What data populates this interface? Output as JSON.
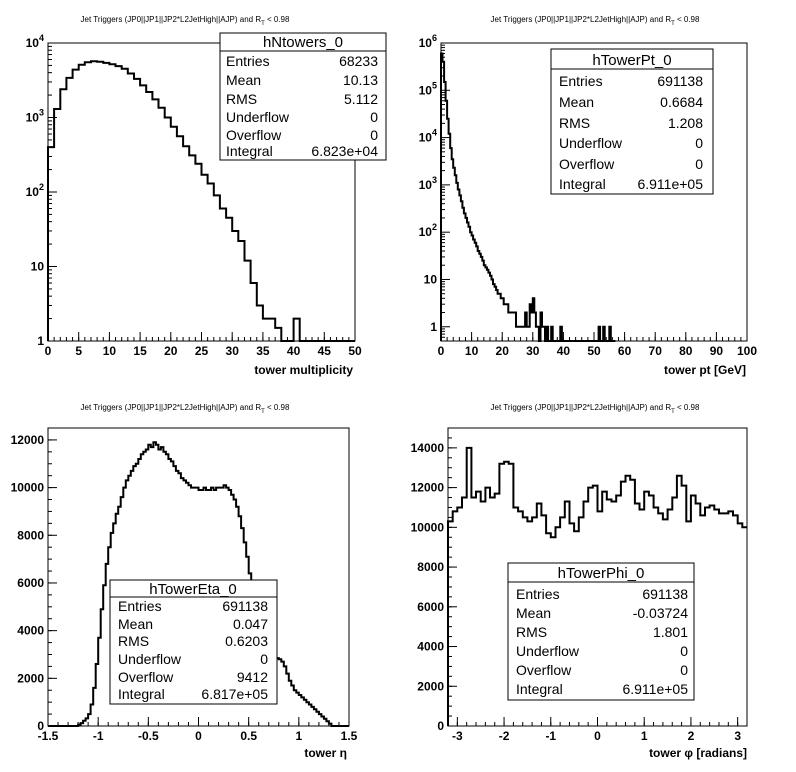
{
  "panels": [
    {
      "id": "ntowers",
      "title": "Jet Triggers (JP0||JP1||JP2*L2JetHigh||AJP) and R_T < 0.98",
      "stats": {
        "name": "hNtowers_0",
        "rows": [
          {
            "label": "Entries",
            "value": "68233"
          },
          {
            "label": "Mean",
            "value": "10.13"
          },
          {
            "label": "RMS",
            "value": "5.112"
          },
          {
            "label": "Underflow",
            "value": "0"
          },
          {
            "label": "Overflow",
            "value": "0"
          },
          {
            "label": "Integral",
            "value": "6.823e+04"
          }
        ]
      }
    },
    {
      "id": "towerpt",
      "title": "Jet Triggers (JP0||JP1||JP2*L2JetHigh||AJP) and R_T < 0.98",
      "stats": {
        "name": "hTowerPt_0",
        "rows": [
          {
            "label": "Entries",
            "value": "691138"
          },
          {
            "label": "Mean",
            "value": "0.6684"
          },
          {
            "label": "RMS",
            "value": "1.208"
          },
          {
            "label": "Underflow",
            "value": "0"
          },
          {
            "label": "Overflow",
            "value": "0"
          },
          {
            "label": "Integral",
            "value": "6.911e+05"
          }
        ]
      }
    },
    {
      "id": "towereta",
      "title": "Jet Triggers (JP0||JP1||JP2*L2JetHigh||AJP) and R_T < 0.98",
      "stats": {
        "name": "hTowerEta_0",
        "rows": [
          {
            "label": "Entries",
            "value": "691138"
          },
          {
            "label": "Mean",
            "value": "0.047"
          },
          {
            "label": "RMS",
            "value": "0.6203"
          },
          {
            "label": "Underflow",
            "value": "0"
          },
          {
            "label": "Overflow",
            "value": "9412"
          },
          {
            "label": "Integral",
            "value": "6.817e+05"
          }
        ]
      }
    },
    {
      "id": "towerphi",
      "title": "Jet Triggers (JP0||JP1||JP2*L2JetHigh||AJP) and R_T < 0.98",
      "stats": {
        "name": "hTowerPhi_0",
        "rows": [
          {
            "label": "Entries",
            "value": "691138"
          },
          {
            "label": "Mean",
            "value": "-0.03724"
          },
          {
            "label": "RMS",
            "value": "1.801"
          },
          {
            "label": "Underflow",
            "value": "0"
          },
          {
            "label": "Overflow",
            "value": "0"
          },
          {
            "label": "Integral",
            "value": "6.911e+05"
          }
        ]
      }
    }
  ],
  "chart_data": [
    {
      "type": "histogram",
      "name": "hNtowers_0",
      "title": "Jet Triggers (JP0||JP1||JP2*L2JetHigh||AJP) and R_T < 0.98",
      "xlabel": "tower multiplicity",
      "ylabel": "",
      "xlim": [
        0,
        50
      ],
      "ylim": [
        1,
        10000
      ],
      "yscale": "log",
      "xticks": [
        0,
        5,
        10,
        15,
        20,
        25,
        30,
        35,
        40,
        45,
        50
      ],
      "yticks": [
        1,
        10,
        100,
        1000,
        10000
      ],
      "ytick_labels": [
        "1",
        "10",
        "10^2",
        "10^3",
        "10^4"
      ],
      "grid": false,
      "bin_width": 1,
      "x_start": 0,
      "values": [
        400,
        1300,
        2400,
        3400,
        4400,
        5100,
        5500,
        5700,
        5600,
        5400,
        5200,
        4900,
        4500,
        3900,
        3300,
        2700,
        2200,
        1750,
        1350,
        1000,
        750,
        560,
        410,
        310,
        240,
        170,
        130,
        90,
        60,
        45,
        30,
        22,
        12,
        6,
        3,
        2,
        2,
        1.5,
        1,
        1,
        2,
        1,
        0,
        0,
        0,
        1,
        0,
        0,
        0,
        0
      ]
    },
    {
      "type": "histogram",
      "name": "hTowerPt_0",
      "title": "Jet Triggers (JP0||JP1||JP2*L2JetHigh||AJP) and R_T < 0.98",
      "xlabel": "tower pt [GeV]",
      "ylabel": "",
      "xlim": [
        0,
        100
      ],
      "ylim": [
        0.5,
        1000000
      ],
      "yscale": "log",
      "xticks": [
        0,
        10,
        20,
        30,
        40,
        50,
        60,
        70,
        80,
        90,
        100
      ],
      "yticks": [
        1,
        10,
        100,
        1000,
        10000,
        100000,
        1000000
      ],
      "ytick_labels": [
        "1",
        "10",
        "10^2",
        "10^3",
        "10^4",
        "10^5",
        "10^6"
      ],
      "grid": false,
      "bin_width": 0.5,
      "x_start": 0,
      "values": [
        600000,
        400000,
        150000,
        60000,
        25000,
        12000,
        6000,
        3500,
        2300,
        1600,
        1100,
        800,
        600,
        450,
        330,
        250,
        200,
        160,
        130,
        100,
        85,
        70,
        60,
        50,
        40,
        35,
        30,
        25,
        20,
        18,
        16,
        14,
        12,
        10,
        8,
        7,
        6,
        5,
        5,
        4,
        4,
        3,
        3,
        3,
        2,
        2,
        2,
        2,
        2,
        1,
        1,
        1,
        1,
        1,
        1,
        2,
        1,
        1,
        3,
        2,
        4,
        2,
        1,
        1,
        0,
        2,
        1,
        1,
        0,
        1,
        0,
        0,
        1,
        0,
        0,
        0,
        0,
        0,
        1,
        0,
        0,
        0,
        0,
        0,
        0,
        0,
        0,
        0,
        0,
        0,
        0,
        0,
        0,
        0,
        0,
        0,
        0,
        0,
        0,
        0,
        0,
        0,
        0,
        1,
        0,
        0,
        1,
        0,
        0,
        0,
        1,
        0,
        0,
        0
      ]
    },
    {
      "type": "histogram",
      "name": "hTowerEta_0",
      "title": "Jet Triggers (JP0||JP1||JP2*L2JetHigh||AJP) and R_T < 0.98",
      "xlabel": "tower η",
      "ylabel": "",
      "xlim": [
        -1.5,
        1.5
      ],
      "ylim": [
        0,
        12500
      ],
      "yscale": "linear",
      "xticks": [
        -1.5,
        -1,
        -0.5,
        0,
        0.5,
        1,
        1.5
      ],
      "xtick_labels": [
        "-1.5",
        "-1",
        "-0.5",
        "0",
        "0.5",
        "1",
        "1.5"
      ],
      "yticks": [
        0,
        2000,
        4000,
        6000,
        8000,
        10000,
        12000
      ],
      "grid": false,
      "bin_width": 0.025,
      "x_start": -1.5,
      "values": [
        0,
        0,
        0,
        0,
        0,
        0,
        0,
        0,
        0,
        0,
        0,
        0,
        60,
        120,
        220,
        320,
        500,
        900,
        1600,
        2600,
        3700,
        4900,
        5900,
        6800,
        7500,
        8100,
        8500,
        8900,
        9200,
        9600,
        10000,
        10300,
        10500,
        10700,
        10900,
        11000,
        11200,
        11400,
        11500,
        11600,
        11800,
        11700,
        11900,
        11800,
        11600,
        11700,
        11500,
        11400,
        11200,
        11100,
        10900,
        10700,
        10600,
        10400,
        10300,
        10200,
        10100,
        10000,
        10000,
        10000,
        9900,
        9900,
        10000,
        9900,
        9900,
        10000,
        9900,
        10000,
        10000,
        10000,
        10100,
        10000,
        9900,
        9700,
        9500,
        9200,
        8800,
        8300,
        7700,
        7100,
        6400,
        5700,
        5000,
        4400,
        3900,
        3500,
        3200,
        3000,
        2950,
        2900,
        2900,
        2850,
        2800,
        2700,
        2500,
        2200,
        1900,
        1700,
        1500,
        1400,
        1300,
        1200,
        1100,
        1000,
        900,
        800,
        700,
        600,
        500,
        400,
        300,
        200,
        100,
        0,
        0,
        0,
        0,
        0,
        0,
        0
      ]
    },
    {
      "type": "histogram",
      "name": "hTowerPhi_0",
      "title": "Jet Triggers (JP0||JP1||JP2*L2JetHigh||AJP) and R_T < 0.98",
      "xlabel": "tower φ [radians]",
      "ylabel": "",
      "xlim": [
        -3.2,
        3.2
      ],
      "ylim": [
        0,
        15000
      ],
      "yscale": "linear",
      "xticks": [
        -3,
        -2,
        -1,
        0,
        1,
        2,
        3
      ],
      "yticks": [
        0,
        2000,
        4000,
        6000,
        8000,
        10000,
        12000,
        14000
      ],
      "grid": false,
      "bin_width": 0.1,
      "x_start": -3.2,
      "values": [
        10300,
        10800,
        11000,
        11500,
        14000,
        11500,
        11800,
        11300,
        12000,
        11500,
        11700,
        13200,
        13300,
        13200,
        11000,
        10800,
        10500,
        10300,
        10500,
        11200,
        10600,
        9700,
        9500,
        10000,
        10500,
        11300,
        10200,
        9800,
        10500,
        11300,
        12000,
        12100,
        10800,
        11800,
        11400,
        11300,
        11600,
        12300,
        12600,
        12400,
        11200,
        10900,
        11800,
        11600,
        11000,
        10700,
        10400,
        10900,
        11500,
        12600,
        12100,
        10300,
        11600,
        11200,
        10600,
        11000,
        11100,
        10900,
        10700,
        10700,
        10800,
        10600,
        10200,
        10000
      ]
    }
  ]
}
